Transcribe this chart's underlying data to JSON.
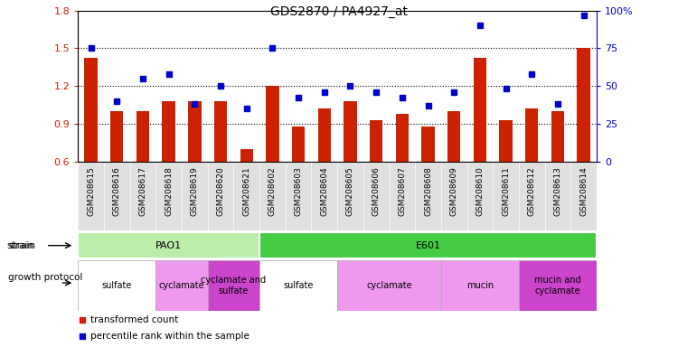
{
  "title": "GDS2870 / PA4927_at",
  "samples": [
    "GSM208615",
    "GSM208616",
    "GSM208617",
    "GSM208618",
    "GSM208619",
    "GSM208620",
    "GSM208621",
    "GSM208602",
    "GSM208603",
    "GSM208604",
    "GSM208605",
    "GSM208606",
    "GSM208607",
    "GSM208608",
    "GSM208609",
    "GSM208610",
    "GSM208611",
    "GSM208612",
    "GSM208613",
    "GSM208614"
  ],
  "red_values": [
    1.42,
    1.0,
    1.0,
    1.08,
    1.08,
    1.08,
    0.7,
    1.2,
    0.88,
    1.02,
    1.08,
    0.93,
    0.98,
    0.88,
    1.0,
    1.42,
    0.93,
    1.02,
    1.0,
    1.5
  ],
  "blue_values": [
    75,
    40,
    55,
    58,
    38,
    50,
    35,
    75,
    42,
    46,
    50,
    46,
    42,
    37,
    46,
    90,
    48,
    58,
    38,
    97
  ],
  "ylim_left": [
    0.6,
    1.8
  ],
  "ylim_right": [
    0,
    100
  ],
  "yticks_left": [
    0.6,
    0.9,
    1.2,
    1.5,
    1.8
  ],
  "yticks_right": [
    0,
    25,
    50,
    75,
    100
  ],
  "hlines": [
    0.9,
    1.2,
    1.5
  ],
  "bar_color": "#cc2200",
  "dot_color": "#0000cc",
  "bar_width": 0.5,
  "strain_data": [
    {
      "text": "PAO1",
      "start": 0,
      "end": 7,
      "color": "#bbeeaa"
    },
    {
      "text": "E601",
      "start": 7,
      "end": 20,
      "color": "#44cc44"
    }
  ],
  "protocol_data": [
    {
      "text": "sulfate",
      "start": 0,
      "end": 3,
      "color": "#ffffff"
    },
    {
      "text": "cyclamate",
      "start": 3,
      "end": 5,
      "color": "#ee99ee"
    },
    {
      "text": "cyclamate and\nsulfate",
      "start": 5,
      "end": 7,
      "color": "#cc44cc"
    },
    {
      "text": "sulfate",
      "start": 7,
      "end": 10,
      "color": "#ffffff"
    },
    {
      "text": "cyclamate",
      "start": 10,
      "end": 14,
      "color": "#ee99ee"
    },
    {
      "text": "mucin",
      "start": 14,
      "end": 17,
      "color": "#ee99ee"
    },
    {
      "text": "mucin and\ncyclamate",
      "start": 17,
      "end": 20,
      "color": "#cc44cc"
    }
  ]
}
